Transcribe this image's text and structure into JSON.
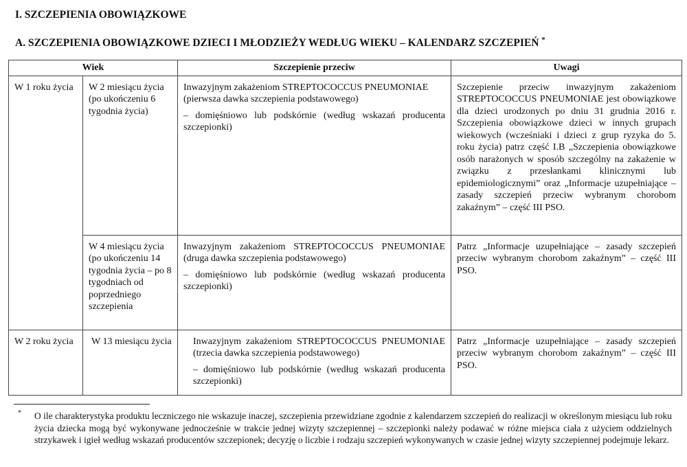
{
  "section_title": "I. SZCZEPIENIA OBOWIĄZKOWE",
  "subsection_title": "A. SZCZEPIENIA OBOWIĄZKOWE DZIECI I MŁODZIEŻY WEDŁUG WIEKU – KALENDARZ SZCZEPIEŃ",
  "subsection_mark": "*",
  "table": {
    "headers": [
      "Wiek",
      "Szczepienie przeciw",
      "Uwagi"
    ],
    "rows": [
      {
        "age": "W 1 roku życia",
        "month": "W 2 miesiącu życia (po ukończeniu 6 tygodnia życia)",
        "vaccine": "Inwazyjnym zakażeniom STREPTOCOCCUS PNEUMONIAE (pierwsza dawka szczepienia podstawowego)",
        "route": "– domięśniowo lub podskórnie (według wskazań producenta szczepionki)",
        "notes": "Szczepienie przeciw inwazyjnym zakażeniom STREPTOCOCCUS PNEUMONIAE jest obowiązkowe dla dzieci urodzonych po dniu 31 grudnia 2016 r. Szczepienia obowiązkowe dzieci w innych grupach wiekowych (wcześniaki i dzieci z grup ryzyka do 5. roku życia) patrz część I.B „Szczepienia obowiązkowe osób narażonych w sposób szczególny na zakażenie w związku z przesłankami klinicznymi lub epidemiologicznymi” oraz „Informacje uzupełniające – zasady szczepień przeciw wybranym chorobom zakaźnym” – część III PSO."
      },
      {
        "month": "W 4 miesiącu życia (po ukończeniu 14 tygodnia życia – po 8 tygodniach od poprzedniego szczepienia",
        "vaccine": "Inwazyjnym zakażeniom STREPTOCOCCUS PNEUMONIAE (druga dawka szczepienia podstawowego)",
        "route": "– domięśniowo lub podskórnie (według wskazań producenta szczepionki)",
        "notes": "Patrz „Informacje uzupełniające – zasady szczepień przeciw wybranym chorobom zakaźnym” – część III PSO."
      },
      {
        "age": "W 2 roku życia",
        "month": "W 13 miesiącu życia",
        "vaccine": "Inwazyjnym zakażeniom STREPTOCOCCUS PNEUMONIAE (trzecia dawka szczepienia podstawowego)",
        "route": "– domięśniowo lub podskórnie (według wskazań producenta szczepionki)",
        "notes": "Patrz „Informacje uzupełniające – zasady szczepień przeciw wybranym chorobom zakaźnym” – część III PSO."
      }
    ]
  },
  "footnote": {
    "mark": "*",
    "text": "O ile charakterystyka produktu leczniczego nie wskazuje inaczej, szczepienia przewidziane zgodnie z kalendarzem szczepień do realizacji w określonym miesiącu lub roku życia dziecka mogą być wykonywane jednocześnie w trakcie jednej wizyty szczepiennej – szczepionki należy podawać w różne miejsca ciała z użyciem oddzielnych strzykawek i igieł według wskazań producentów szczepionek; decyzję o liczbie i rodzaju szczepień wykonywanych w czasie jednej wizyty szczepiennej podejmuje lekarz."
  }
}
